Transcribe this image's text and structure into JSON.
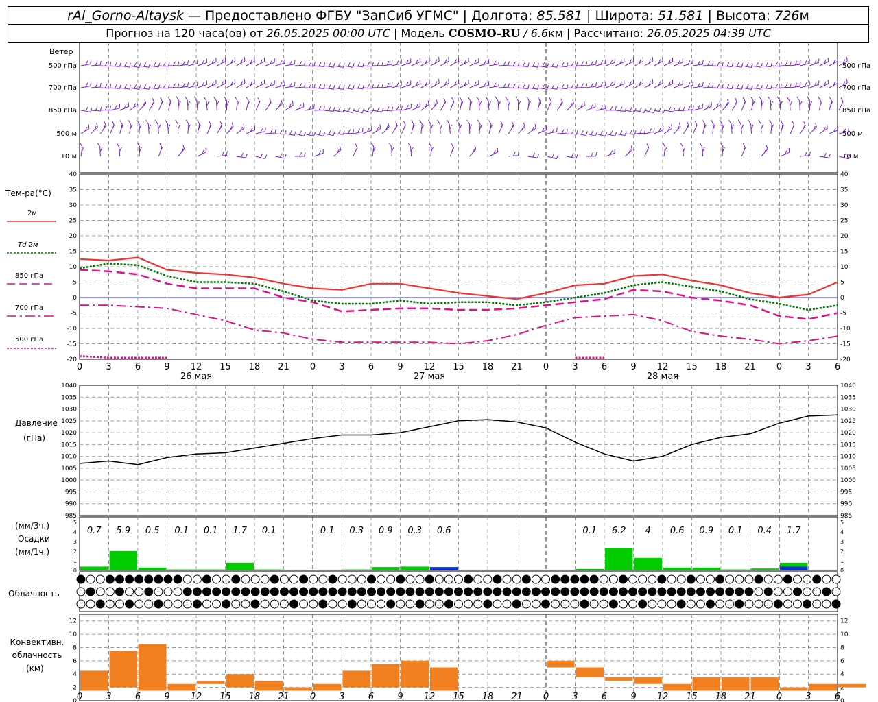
{
  "header": {
    "station": "rAl_Gorno-Altaysk",
    "provider": "— Предоставлено ФГБУ \"ЗапСиб УГМС\" |",
    "lon_label": "Долгота:",
    "lon_value": "85.581",
    "lat_label": "| Широта:",
    "lat_value": "51.581",
    "alt_label": "| Высота:",
    "alt_value": "726",
    "alt_unit": "м",
    "forecast_prefix": "Прогноз на 120 часа(ов) от",
    "forecast_time": "26.05.2025 00:00 UTC",
    "model_label": "| Модель",
    "model_name": "COSMO-RU",
    "model_res": "/ 6.6",
    "model_res_unit": "км",
    "calc_label": "| Рассчитано:",
    "calc_time": "26.05.2025 04:39 UTC"
  },
  "colors": {
    "wind": "#7a1fd0",
    "t2m": "#ee3333",
    "td2m": "#007700",
    "t850": "#dd1188",
    "t700": "#dd1188",
    "t500": "#dd1188",
    "precip_rain": "#00cc00",
    "precip_conv": "#0033dd",
    "conv_cloud": "#f08020",
    "grid": "#9a9a9a",
    "zero_line": "#3333cc"
  },
  "wind_panel": {
    "title": "Ветер",
    "levels": [
      "500 гПа",
      "700 гПа",
      "850 гПа",
      "500 м",
      "10 м"
    ]
  },
  "temp_panel": {
    "title": "Тем-ра(°C)",
    "legend": [
      {
        "label": "2м",
        "key": "t2m"
      },
      {
        "label": "Td 2м",
        "key": "td2m"
      },
      {
        "label": "850 гПа",
        "key": "t850"
      },
      {
        "label": "700 гПа",
        "key": "t700"
      },
      {
        "label": "500 гПа",
        "key": "t500"
      }
    ],
    "y_ticks": [
      "40",
      "35",
      "30",
      "25",
      "20",
      "15",
      "10",
      "5",
      "0",
      "-5",
      "-10",
      "-15",
      "-20"
    ],
    "day_labels": [
      "26 мая",
      "27 мая",
      "28 мая"
    ]
  },
  "x_ticks": [
    "0",
    "3",
    "6",
    "9",
    "12",
    "15",
    "18",
    "21",
    "0",
    "3",
    "6",
    "9",
    "12",
    "15",
    "18",
    "21",
    "0",
    "3",
    "6",
    "9",
    "12",
    "15",
    "18",
    "21",
    "0",
    "3",
    "6"
  ],
  "pressure_panel": {
    "title": "Давление",
    "unit": "(гПа)",
    "y_ticks": [
      "1040",
      "1035",
      "1030",
      "1025",
      "1020",
      "1015",
      "1010",
      "1005",
      "1000",
      "995",
      "990",
      "985"
    ]
  },
  "precip_panel": {
    "unit3": "(мм/3ч.)",
    "title": "Осадки",
    "unit1": "(мм/1ч.)",
    "y_ticks": [
      "5",
      "4",
      "3",
      "2",
      "1",
      "0"
    ],
    "totals": [
      "0.7",
      "5.9",
      "0.5",
      "0.1",
      "0.1",
      "1.7",
      "0.1",
      "",
      "0.1",
      "0.3",
      "0.9",
      "0.3",
      "0.6",
      "",
      "",
      "",
      "",
      "0.1",
      "6.2",
      "4",
      "0.6",
      "0.9",
      "0.1",
      "0.4",
      "1.7",
      "",
      ""
    ]
  },
  "cloud_panel": {
    "title": "Облачность"
  },
  "conv_panel": {
    "title": "Конвективн. облачность",
    "unit": "(км)",
    "y_ticks": [
      "12",
      "10",
      "8",
      "6",
      "4",
      "2",
      "0"
    ]
  },
  "chart_data": [
    {
      "type": "line",
      "title": "Тем-ра(°C)",
      "x_hours": [
        0,
        3,
        6,
        9,
        12,
        15,
        18,
        21,
        24,
        27,
        30,
        33,
        36,
        39,
        42,
        45,
        48,
        51,
        54,
        57,
        60,
        63,
        66,
        69,
        72,
        75,
        78
      ],
      "ylim": [
        -20,
        40
      ],
      "series": [
        {
          "name": "2м",
          "values": [
            12.5,
            12,
            13,
            9,
            8,
            7.5,
            6.5,
            4.5,
            3,
            2.5,
            4.5,
            4.5,
            3,
            1.5,
            0.5,
            -0.5,
            1.5,
            4,
            4.5,
            7,
            7.5,
            5.5,
            4,
            1.5,
            0,
            1,
            5
          ]
        },
        {
          "name": "Td 2м",
          "values": [
            9.5,
            11,
            10.5,
            7,
            5,
            5,
            4.5,
            2,
            -1,
            -2,
            -2,
            -1,
            -2,
            -1.5,
            -1.5,
            -2.5,
            -1.5,
            0,
            1.5,
            4,
            5,
            3.5,
            2,
            -0.5,
            -2,
            -4,
            -2.5
          ]
        },
        {
          "name": "850 гПа",
          "values": [
            9,
            8.5,
            7.5,
            4.5,
            3,
            3,
            3,
            0,
            -1.5,
            -4.5,
            -4,
            -3.5,
            -3.5,
            -4,
            -4,
            -3.5,
            -2.5,
            -1.5,
            -0.5,
            2.5,
            2,
            0,
            -1,
            -2.5,
            -6,
            -7,
            -5
          ]
        },
        {
          "name": "700 гПа",
          "values": [
            -2.5,
            -2.5,
            -3,
            -3.5,
            -5.5,
            -7.5,
            -10.5,
            -11.5,
            -13.5,
            -14.5,
            -14.5,
            -14.5,
            -14.5,
            -15,
            -14,
            -12,
            -9,
            -6.5,
            -6,
            -5.5,
            -7.5,
            -11,
            -12.5,
            -13.5,
            -15,
            -14,
            -12.5
          ]
        },
        {
          "name": "500 гПа",
          "values": [
            -19,
            -19.5,
            -19.5,
            -19.5,
            null,
            null,
            null,
            null,
            null,
            null,
            null,
            null,
            null,
            null,
            null,
            null,
            null,
            -19.5,
            -19.5,
            null,
            null,
            null,
            null,
            null,
            null,
            null,
            -20
          ]
        }
      ]
    },
    {
      "type": "line",
      "title": "Давление",
      "x_hours": [
        0,
        3,
        6,
        9,
        12,
        15,
        18,
        21,
        24,
        27,
        30,
        33,
        36,
        39,
        42,
        45,
        48,
        51,
        54,
        57,
        60,
        63,
        66,
        69,
        72,
        75,
        78
      ],
      "ylim": [
        985,
        1040
      ],
      "series": [
        {
          "name": "Давление",
          "values": [
            1007,
            1008,
            1006.5,
            1009.5,
            1011,
            1011.5,
            1013.5,
            1015.5,
            1017.5,
            1019,
            1019,
            1020,
            1022.5,
            1025,
            1025.5,
            1024.5,
            1022,
            1016,
            1011,
            1008,
            1010,
            1015,
            1018,
            1019.5,
            1024,
            1027,
            1027.5
          ]
        }
      ]
    },
    {
      "type": "bar",
      "title": "Осадки",
      "x_hours": [
        0,
        3,
        6,
        9,
        12,
        15,
        18,
        21,
        24,
        27,
        30,
        33,
        36,
        39,
        42,
        45,
        48,
        51,
        54,
        57,
        60,
        63,
        66,
        69,
        72,
        75,
        78
      ],
      "ylim": [
        0,
        5
      ],
      "series": [
        {
          "name": "Осадки",
          "values": [
            0.4,
            2,
            0.3,
            0.1,
            0.1,
            0.8,
            0.1,
            0,
            0,
            0.1,
            0.35,
            0.4,
            0.1,
            0,
            0,
            0,
            0,
            0.15,
            2.3,
            1.3,
            0.3,
            0.3,
            0.1,
            0.2,
            0.8,
            0,
            0
          ]
        },
        {
          "name": "Осадки (конв.)",
          "values": [
            0,
            0,
            0,
            0,
            0,
            0,
            0,
            0,
            0,
            0,
            0,
            0,
            0.35,
            0,
            0,
            0,
            0,
            0,
            0,
            0,
            0,
            0,
            0,
            0,
            0.4,
            0,
            0
          ]
        }
      ]
    },
    {
      "type": "bar",
      "title": "Конвективн. облачность",
      "x_hours": [
        0,
        3,
        6,
        9,
        12,
        15,
        18,
        21,
        24,
        27,
        30,
        33,
        36,
        39,
        42,
        45,
        48,
        51,
        54,
        57,
        60,
        63,
        66,
        69,
        72,
        75,
        78
      ],
      "ylim": [
        0,
        13
      ],
      "series": [
        {
          "name": "Нижняя граница (км)",
          "values": [
            1.5,
            2,
            1.5,
            1.5,
            2.5,
            2,
            1.5,
            1.5,
            1.5,
            2,
            2,
            2,
            1.5,
            0,
            0,
            0,
            5,
            3.5,
            3,
            2.5,
            1.5,
            1.5,
            1.5,
            1.5,
            1.5,
            1.5,
            2
          ]
        },
        {
          "name": "Верхняя граница (км)",
          "values": [
            4.5,
            7.5,
            8.5,
            2.5,
            3,
            4,
            3,
            2,
            2.5,
            4.5,
            5.5,
            6,
            5,
            0,
            0,
            0,
            6,
            5,
            3.5,
            3.5,
            2.5,
            3.5,
            3.5,
            3.5,
            2,
            2.5,
            2.5
          ]
        }
      ]
    }
  ]
}
